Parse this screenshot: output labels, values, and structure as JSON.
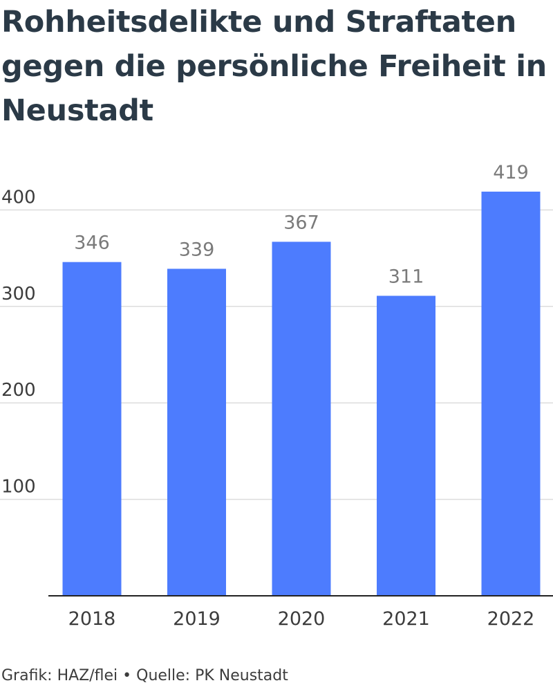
{
  "title": "Rohheitsdelikte und Straftaten gegen die persönliche Freiheit in Neustadt",
  "footer": "Grafik: HAZ/flei • Quelle: PK Neustadt",
  "chart_data": {
    "type": "bar",
    "title": "Rohheitsdelikte und Straftaten gegen die persönliche Freiheit in Neustadt",
    "xlabel": "",
    "ylabel": "",
    "categories": [
      "2018",
      "2019",
      "2020",
      "2021",
      "2022"
    ],
    "values": [
      346,
      339,
      367,
      311,
      419
    ],
    "data_labels": [
      "346",
      "339",
      "367",
      "311",
      "419"
    ],
    "ylim": [
      0,
      430
    ],
    "y_ticks": [
      100,
      200,
      300,
      400
    ],
    "y_tick_labels": [
      "100",
      "200",
      "300",
      "400"
    ],
    "grid": true,
    "bar_color": "#4d7cfe",
    "grid_color": "#dcdcdc",
    "text_color": "#2b3a47"
  }
}
